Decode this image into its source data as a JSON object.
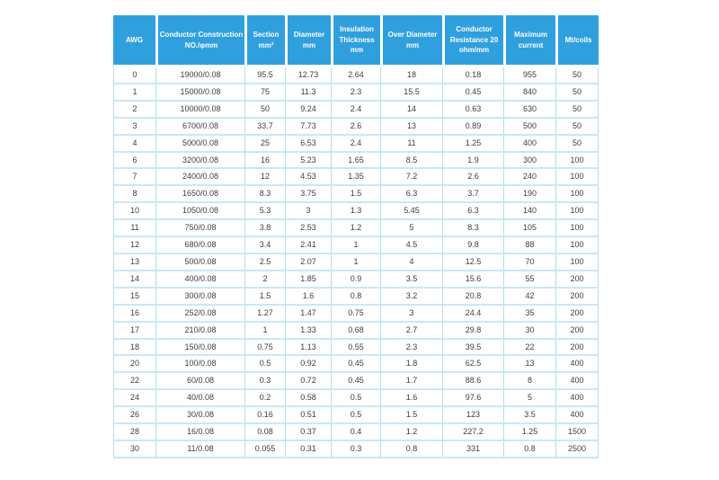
{
  "colors": {
    "accent": "#2FA0DD",
    "header_text": "#ffffff",
    "body_text": "#3d3d3d",
    "grid_horizontal": "#C9E8F6",
    "grid_vertical": "#B5DCEF",
    "page_background": "#ffffff"
  },
  "chart_data": {
    "type": "table",
    "title": "AWG wire specification table",
    "columns": [
      "AWG",
      "Conductor Construction NO./φmm",
      "Section mm²",
      "Diameter mm",
      "Insulation Thickness mm",
      "Over Diameter mm",
      "Conductor Resistance 20 ohm/mm",
      "Maximum current",
      "Mt/coils"
    ],
    "rows": [
      [
        "0",
        "19000/0.08",
        "95.5",
        "12.73",
        "2.64",
        "18",
        "0.18",
        "955",
        "50"
      ],
      [
        "1",
        "15000/0.08",
        "75",
        "11.3",
        "2.3",
        "15.5",
        "0.45",
        "840",
        "50"
      ],
      [
        "2",
        "10000/0.08",
        "50",
        "9.24",
        "2.4",
        "14",
        "0.63",
        "630",
        "50"
      ],
      [
        "3",
        "6700/0.08",
        "33.7",
        "7.73",
        "2.6",
        "13",
        "0.89",
        "500",
        "50"
      ],
      [
        "4",
        "5000/0.08",
        "25",
        "6.53",
        "2.4",
        "11",
        "1.25",
        "400",
        "50"
      ],
      [
        "6",
        "3200/0.08",
        "16",
        "5.23",
        "1.65",
        "8.5",
        "1.9",
        "300",
        "100"
      ],
      [
        "7",
        "2400/0.08",
        "12",
        "4.53",
        "1.35",
        "7.2",
        "2.6",
        "240",
        "100"
      ],
      [
        "8",
        "1650/0.08",
        "8.3",
        "3.75",
        "1.5",
        "6.3",
        "3.7",
        "190",
        "100"
      ],
      [
        "10",
        "1050/0.08",
        "5.3",
        "3",
        "1.3",
        "5.45",
        "6.3",
        "140",
        "100"
      ],
      [
        "11",
        "750/0.08",
        "3.8",
        "2.53",
        "1.2",
        "5",
        "8.3",
        "105",
        "100"
      ],
      [
        "12",
        "680/0.08",
        "3.4",
        "2.41",
        "1",
        "4.5",
        "9.8",
        "88",
        "100"
      ],
      [
        "13",
        "500/0.08",
        "2.5",
        "2.07",
        "1",
        "4",
        "12.5",
        "70",
        "100"
      ],
      [
        "14",
        "400/0.08",
        "2",
        "1.85",
        "0.9",
        "3.5",
        "15.6",
        "55",
        "200"
      ],
      [
        "15",
        "300/0.08",
        "1.5",
        "1.6",
        "0.8",
        "3.2",
        "20.8",
        "42",
        "200"
      ],
      [
        "16",
        "252/0.08",
        "1.27",
        "1.47",
        "0.75",
        "3",
        "24.4",
        "35",
        "200"
      ],
      [
        "17",
        "210/0.08",
        "1",
        "1.33",
        "0.68",
        "2.7",
        "29.8",
        "30",
        "200"
      ],
      [
        "18",
        "150/0.08",
        "0.75",
        "1.13",
        "0.55",
        "2.3",
        "39.5",
        "22",
        "200"
      ],
      [
        "20",
        "100/0.08",
        "0.5",
        "0.92",
        "0.45",
        "1.8",
        "62.5",
        "13",
        "400"
      ],
      [
        "22",
        "60/0.08",
        "0.3",
        "0.72",
        "0.45",
        "1.7",
        "88.6",
        "8",
        "400"
      ],
      [
        "24",
        "40/0.08",
        "0.2",
        "0.58",
        "0.5",
        "1.6",
        "97.6",
        "5",
        "400"
      ],
      [
        "26",
        "30/0.08",
        "0.16",
        "0.51",
        "0.5",
        "1.5",
        "123",
        "3.5",
        "400"
      ],
      [
        "28",
        "16/0.08",
        "0.08",
        "0.37",
        "0.4",
        "1.2",
        "227.2",
        "1.25",
        "1500"
      ],
      [
        "30",
        "11/0.08",
        "0.055",
        "0.31",
        "0.3",
        "0.8",
        "331",
        "0.8",
        "2500"
      ]
    ]
  }
}
